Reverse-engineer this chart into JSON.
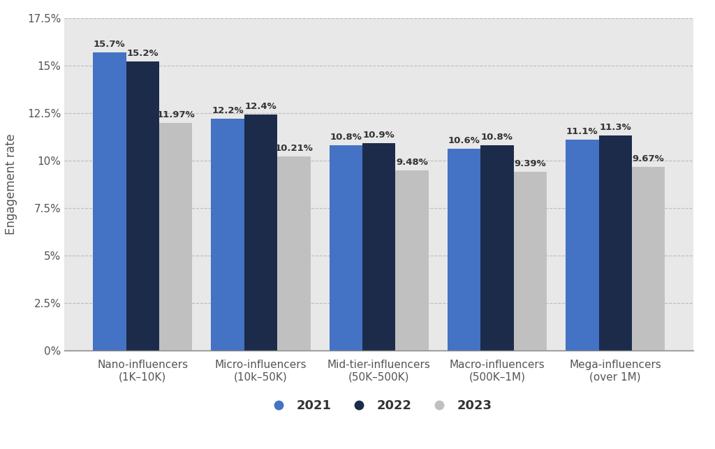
{
  "categories": [
    "Nano-influencers\n(1K–10K)",
    "Micro-influencers\n(10k–50K)",
    "Mid-tier-influencers\n(50K–500K)",
    "Macro-influencers\n(500K–1M)",
    "Mega-influencers\n(over 1M)"
  ],
  "series": {
    "2021": [
      15.7,
      12.2,
      10.8,
      10.6,
      11.1
    ],
    "2022": [
      15.2,
      12.4,
      10.9,
      10.8,
      11.3
    ],
    "2023": [
      11.97,
      10.21,
      9.48,
      9.39,
      9.67
    ]
  },
  "bar_labels": {
    "2021": [
      "15.7%",
      "12.2%",
      "10.8%",
      "10.6%",
      "11.1%"
    ],
    "2022": [
      "15.2%",
      "12.4%",
      "10.9%",
      "10.8%",
      "11.3%"
    ],
    "2023": [
      "11.97%",
      "10.21%",
      "9.48%",
      "9.39%",
      "9.67%"
    ]
  },
  "bar_colors": {
    "2021": "#4472c4",
    "2022": "#1c2b4a",
    "2023": "#c0c0c0"
  },
  "ylabel": "Engagement rate",
  "ylim": [
    0,
    17.5
  ],
  "yticks": [
    0,
    2.5,
    5.0,
    7.5,
    10.0,
    12.5,
    15.0,
    17.5
  ],
  "ytick_labels": [
    "0%",
    "2.5%",
    "5%",
    "7.5%",
    "10%",
    "12.5%",
    "15%",
    "17.5%"
  ],
  "legend_labels": [
    "2021",
    "2022",
    "2023"
  ],
  "outer_bg": "#ffffff",
  "plot_bg": "#e8e8e8",
  "label_fontsize": 9.5,
  "bar_width": 0.28,
  "ylabel_fontsize": 12,
  "tick_fontsize": 11,
  "annotation_fontsize": 9.5
}
